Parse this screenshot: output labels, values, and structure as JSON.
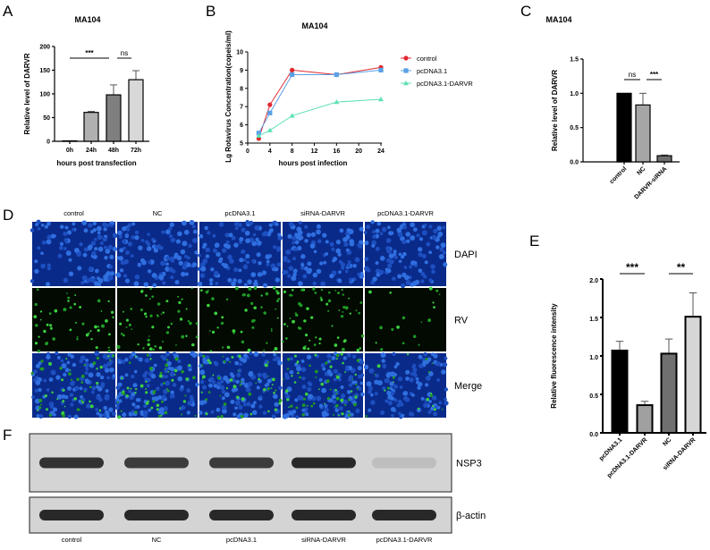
{
  "panel_labels": [
    "A",
    "B",
    "C",
    "D",
    "E",
    "F"
  ],
  "chart_data": [
    {
      "id": "A",
      "type": "bar",
      "title": "MA104",
      "xlabel": "hours post transfection",
      "ylabel": "Relative level of DARVR",
      "categories": [
        "0h",
        "24h",
        "48h",
        "72h"
      ],
      "values": [
        1,
        61,
        98,
        130
      ],
      "errors": [
        0,
        2,
        21,
        19
      ],
      "colors": [
        "#ffffff",
        "#b0b0b0",
        "#7f7f7f",
        "#d8d8d8"
      ],
      "ylim": [
        0,
        200
      ],
      "yticks": [
        0,
        50,
        100,
        150,
        200
      ],
      "significance": [
        {
          "from": 0,
          "to": 2,
          "label": "***"
        },
        {
          "from": 2,
          "to": 3,
          "label": "ns"
        }
      ]
    },
    {
      "id": "B",
      "type": "line",
      "title": "MA104",
      "xlabel": "hours post infection",
      "ylabel": "Lg Rotavirus Concentration(copeis/ml)",
      "xlim": [
        0,
        24
      ],
      "xticks": [
        0,
        4,
        8,
        12,
        16,
        20,
        24
      ],
      "ylim": [
        5,
        10
      ],
      "yticks": [
        5,
        6,
        7,
        8,
        9,
        10
      ],
      "legend_position": "right",
      "series": [
        {
          "name": "control",
          "color": "#e0282e",
          "marker": "circle",
          "x": [
            2,
            4,
            8,
            16,
            24
          ],
          "y": [
            5.25,
            7.1,
            9.0,
            8.75,
            9.15
          ]
        },
        {
          "name": "pcDNA3.1",
          "color": "#5aa0e6",
          "marker": "square",
          "x": [
            2,
            4,
            8,
            16,
            24
          ],
          "y": [
            5.55,
            6.65,
            8.75,
            8.75,
            9.0
          ]
        },
        {
          "name": "pcDNA3.1-DARVR",
          "color": "#5fe0b8",
          "marker": "triangle",
          "x": [
            2,
            4,
            8,
            16,
            24
          ],
          "y": [
            5.4,
            5.7,
            6.5,
            7.25,
            7.4
          ]
        }
      ]
    },
    {
      "id": "C",
      "type": "bar",
      "title": "MA104",
      "xlabel": "",
      "ylabel": "Relative level of DARVR",
      "categories": [
        "control",
        "NC",
        "DARVR-siRNA"
      ],
      "values": [
        1.0,
        0.83,
        0.09
      ],
      "errors": [
        0,
        0.17,
        0.01
      ],
      "colors": [
        "#000000",
        "#a6a6a6",
        "#6e6e6e"
      ],
      "ylim": [
        0,
        1.5
      ],
      "yticks": [
        "0.0",
        "0.5",
        "1.0",
        "1.5"
      ],
      "significance": [
        {
          "from": 0,
          "to": 1,
          "label": "ns"
        },
        {
          "from": 1,
          "to": 2,
          "label": "***"
        }
      ]
    },
    {
      "id": "E",
      "type": "bar",
      "title": "",
      "xlabel": "",
      "ylabel": "Relative fluorescence intensity",
      "categories": [
        "pcDNA3.1",
        "pcDNA3.1-DARVR",
        "NC",
        "siRNA-DARVR"
      ],
      "values": [
        1.07,
        0.36,
        1.03,
        1.51
      ],
      "errors": [
        0.12,
        0.05,
        0.19,
        0.31
      ],
      "colors": [
        "#000000",
        "#a0a0a0",
        "#707070",
        "#d6d6d6"
      ],
      "ylim": [
        0,
        2.0
      ],
      "yticks": [
        "0.0",
        "0.5",
        "1.0",
        "1.5",
        "2.0"
      ],
      "significance": [
        {
          "from": 0,
          "to": 1,
          "label": "***"
        },
        {
          "from": 2,
          "to": 3,
          "label": "**"
        }
      ]
    }
  ],
  "microscopy": {
    "columns": [
      "control",
      "NC",
      "pcDNA3.1",
      "siRNA-DARVR",
      "pcDNA3.1-DARVR"
    ],
    "rows": [
      "DAPI",
      "RV",
      "Merge"
    ],
    "rv_intensity": [
      0.7,
      0.8,
      0.7,
      0.9,
      0.25
    ]
  },
  "western_blot": {
    "lanes": [
      "control",
      "NC",
      "pcDNA3.1",
      "siRNA-DARVR",
      "pcDNA3.1-DARVR"
    ],
    "bands": [
      {
        "label": "NSP3",
        "intensity": [
          0.9,
          0.85,
          0.85,
          0.95,
          0.2
        ]
      },
      {
        "label": "β-actin",
        "intensity": [
          0.95,
          0.95,
          0.95,
          0.95,
          0.95
        ]
      }
    ]
  }
}
